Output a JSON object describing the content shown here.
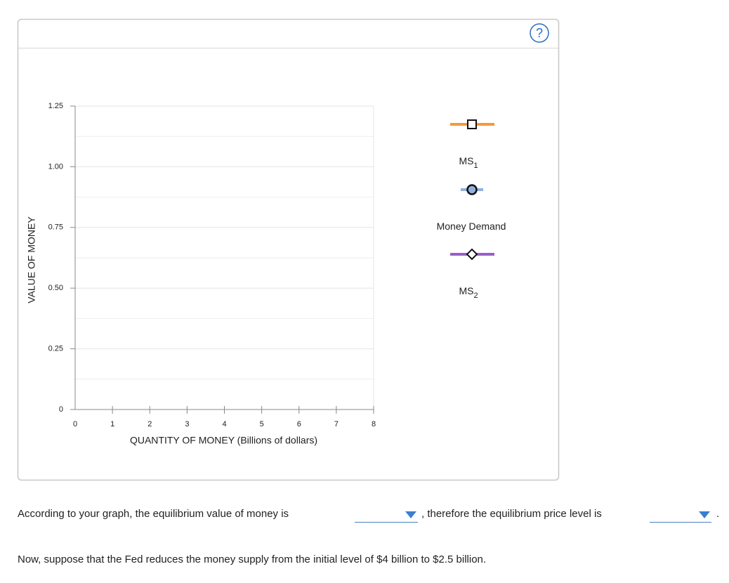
{
  "chart_data": {
    "type": "line",
    "x_label": "QUANTITY OF MONEY (Billions of dollars)",
    "y_label": "VALUE OF MONEY",
    "xlim": [
      0,
      8
    ],
    "xticks": [
      0,
      1,
      2,
      3,
      4,
      5,
      6,
      7,
      8
    ],
    "ylim": [
      0,
      1.25
    ],
    "yticks": [
      0,
      0.25,
      {
        "value": 0.5,
        "label": "0.50"
      },
      0.75,
      {
        "value": 1,
        "label": "1.00"
      },
      1.25
    ],
    "grid_yticks": [
      0.125,
      0.375,
      0.625,
      0.875,
      1.125
    ],
    "grid": true
  },
  "help_icon": "?",
  "tools": [
    {
      "label": "MS",
      "subscript": "1",
      "color": "#f39a3a",
      "marker": "square"
    },
    {
      "label": "Money Demand",
      "color": "#8fb1dc",
      "marker": "circle"
    },
    {
      "label": "MS",
      "subscript": "2",
      "color": "#9a5fc8",
      "marker": "diamond"
    }
  ],
  "question": {
    "part1": "According to your graph, the equilibrium value of money is",
    "part2": ", therefore the equilibrium price level is",
    "part3": ".",
    "note": "Now, suppose that the Fed reduces the money supply from the initial level of $4 billion to $2.5 billion."
  }
}
